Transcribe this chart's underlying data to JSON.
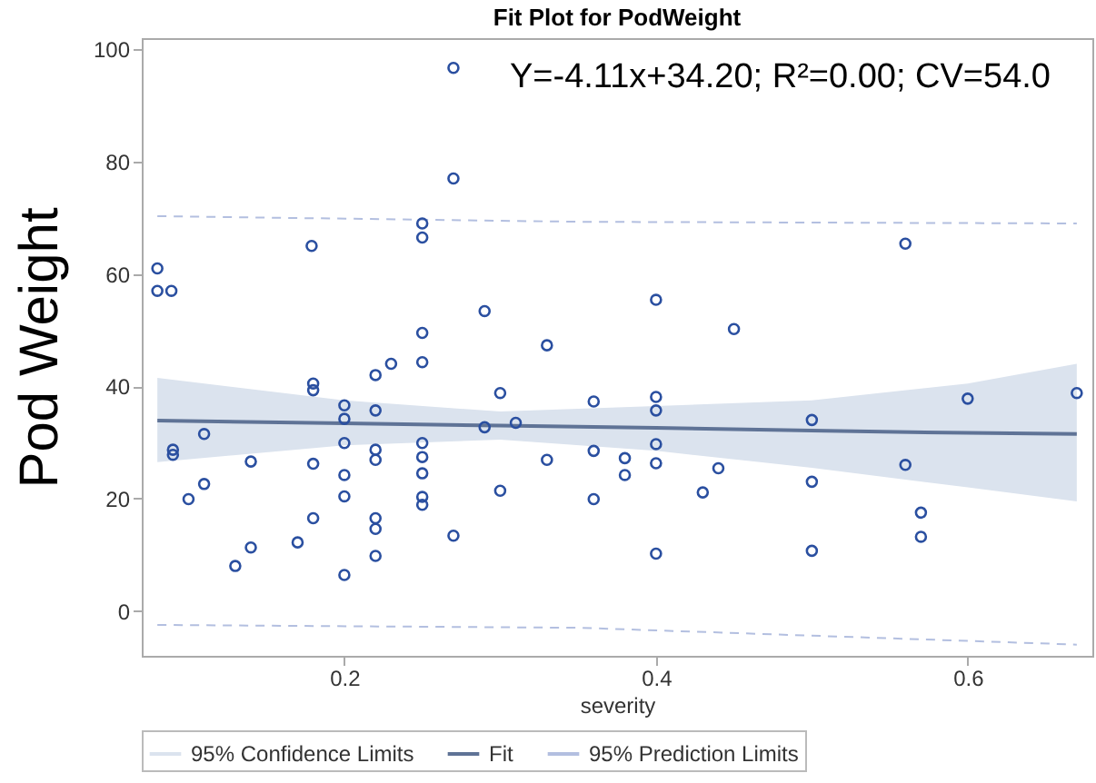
{
  "chart_data": {
    "type": "scatter",
    "title": "Fit Plot for PodWeight",
    "xlabel": "severity",
    "ylabel": "Pod Weight",
    "annotations": [
      "Y=-4.11x+34.20; R²=0.00; CV=54.0"
    ],
    "xlim": [
      0.07,
      0.68
    ],
    "ylim": [
      -8,
      102
    ],
    "xticks": [
      0.2,
      0.4,
      0.6
    ],
    "yticks": [
      0,
      20,
      40,
      60,
      80,
      100
    ],
    "grid": false,
    "legend": "bottom",
    "series": [
      {
        "name": "95% Confidence Limits",
        "type": "area",
        "color": "#dbe3ee"
      },
      {
        "name": "Fit",
        "type": "line",
        "line_style": "solid",
        "color": "#5f7396",
        "x": [
          0.08,
          0.2,
          0.3,
          0.4,
          0.5,
          0.6,
          0.67
        ],
        "values": [
          33.9,
          33.4,
          33,
          32.6,
          32.1,
          31.7,
          31.5
        ],
        "lower": [
          26.5,
          29.5,
          30.5,
          28.5,
          25.5,
          22,
          19.5
        ],
        "upper": [
          41.5,
          37.5,
          35.5,
          36.5,
          37.5,
          40.5,
          44
        ]
      },
      {
        "name": "95% Prediction Limits",
        "type": "line",
        "line_style": "dashed",
        "color": "#b3bfe0",
        "x": [
          0.08,
          0.35,
          0.67
        ],
        "values": [
          70.3,
          69.3,
          69
        ]
      },
      {
        "type": "line",
        "line_style": "dashed",
        "color": "#b3bfe0",
        "x": [
          0.08,
          0.35,
          0.67
        ],
        "values": [
          -2.5,
          -3,
          -6
        ]
      },
      {
        "marker": "circle",
        "color": "#2a4fa0",
        "x": [
          0.08,
          0.08,
          0.089,
          0.179,
          0.27,
          0.27,
          0.25,
          0.25,
          0.25,
          0.25,
          0.23,
          0.22,
          0.29,
          0.33,
          0.4,
          0.45,
          0.56,
          0.09,
          0.09,
          0.11,
          0.1,
          0.11,
          0.14,
          0.13,
          0.14,
          0.17,
          0.18,
          0.18,
          0.18,
          0.18,
          0.2,
          0.2,
          0.2,
          0.2,
          0.2,
          0.2,
          0.22,
          0.22,
          0.22,
          0.22,
          0.22,
          0.22,
          0.25,
          0.25,
          0.25,
          0.25,
          0.25,
          0.27,
          0.3,
          0.29,
          0.31,
          0.3,
          0.33,
          0.36,
          0.36,
          0.36,
          0.38,
          0.38,
          0.4,
          0.4,
          0.4,
          0.4,
          0.4,
          0.43,
          0.44,
          0.5,
          0.5,
          0.5,
          0.56,
          0.57,
          0.57,
          0.6,
          0.67
        ],
        "values": [
          61,
          57,
          57,
          65,
          96.7,
          77,
          69,
          66.5,
          49.5,
          44.3,
          44,
          42,
          53.4,
          47.3,
          55.4,
          50.2,
          65.4,
          28.7,
          27.8,
          31.5,
          19.9,
          22.6,
          26.6,
          8,
          11.3,
          12.2,
          26.2,
          16.5,
          40.5,
          39.3,
          36.6,
          34.2,
          29.9,
          24.2,
          20.4,
          6.4,
          35.7,
          28.7,
          26.9,
          16.5,
          14.6,
          9.8,
          29.9,
          27.4,
          24.5,
          20.3,
          18.9,
          13.4,
          38.8,
          32.7,
          33.5,
          21.4,
          26.9,
          37.3,
          28.5,
          19.9,
          27.2,
          24.2,
          38.1,
          35.7,
          29.7,
          26.3,
          10.2,
          21.1,
          25.4,
          34,
          23,
          10.7,
          26,
          17.5,
          13.2,
          37.8,
          38.8
        ]
      }
    ]
  }
}
